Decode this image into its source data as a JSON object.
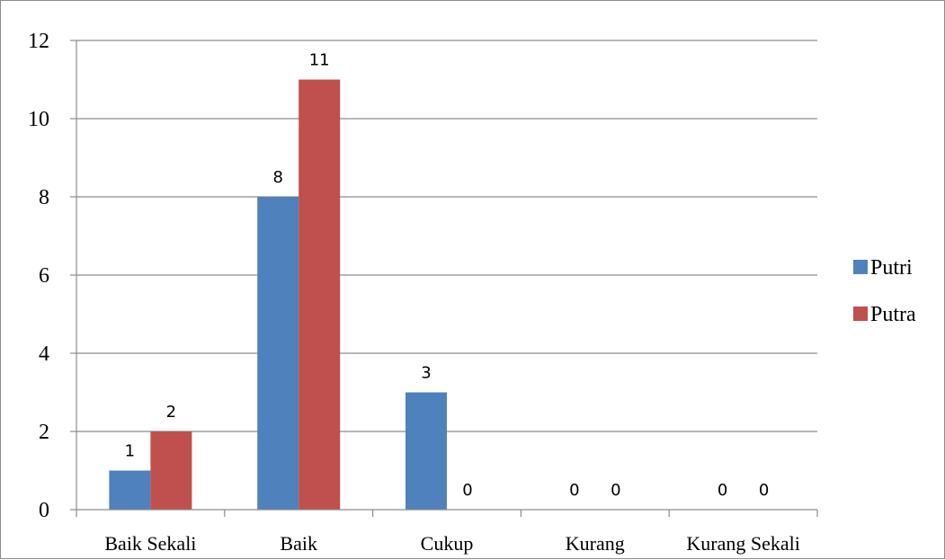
{
  "chart_data": {
    "type": "bar",
    "title": "",
    "xlabel": "",
    "ylabel": "",
    "categories": [
      "Baik Sekali",
      "Baik",
      "Cukup",
      "Kurang",
      "Kurang Sekali"
    ],
    "series": [
      {
        "name": "Putri",
        "values": [
          1,
          8,
          3,
          0,
          0
        ],
        "color": "#4f81bd"
      },
      {
        "name": "Putra",
        "values": [
          2,
          11,
          0,
          0,
          0
        ],
        "color": "#c0504d"
      }
    ],
    "ylim": [
      0,
      12
    ],
    "yticks": [
      0,
      2,
      4,
      6,
      8,
      10,
      12
    ],
    "grid": true,
    "legend": "right",
    "data_labels": true
  }
}
